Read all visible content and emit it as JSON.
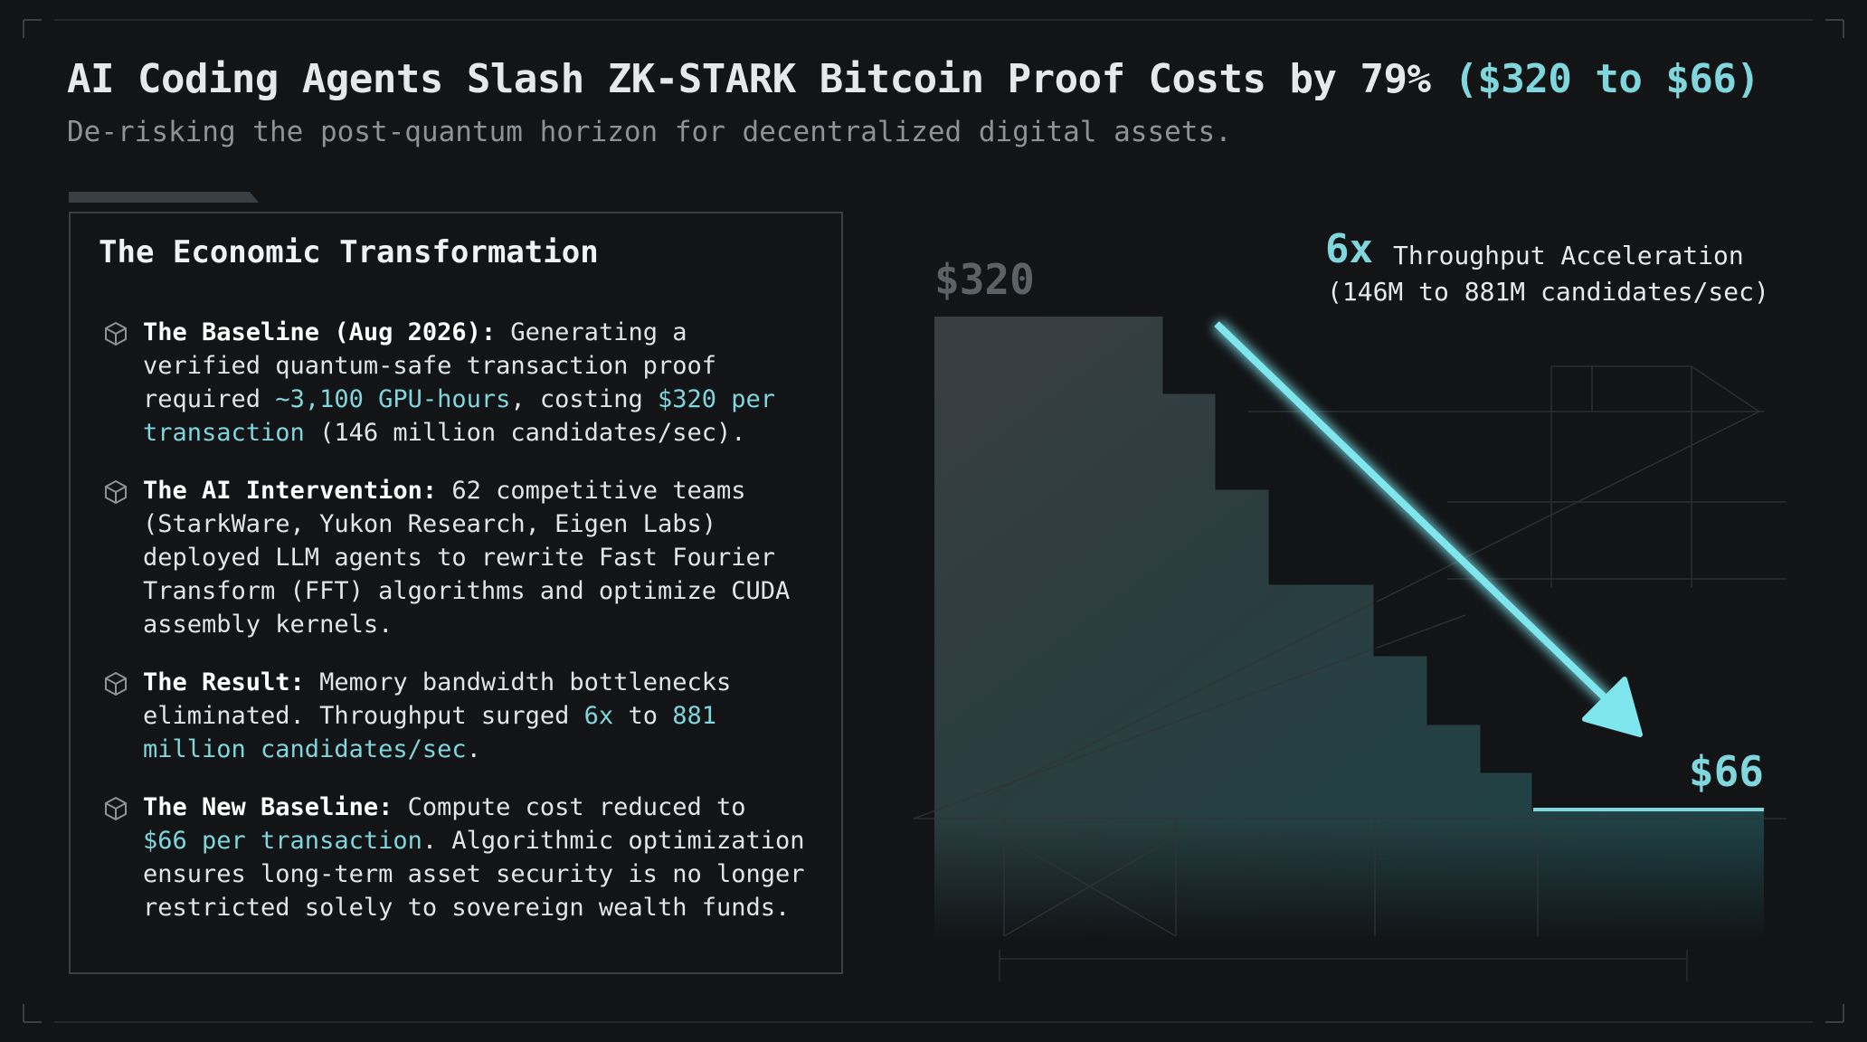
{
  "header": {
    "title": "AI Coding Agents Slash ZK-STARK Bitcoin Proof Costs by 79%",
    "title_highlight": "($320 to $66)",
    "subtitle": "De-risking the post-quantum horizon for decentralized digital assets."
  },
  "panel": {
    "title": "The Economic Transformation",
    "items": [
      {
        "label": "The Baseline (Aug 2026):",
        "segments": [
          {
            "text": "Generating a verified quantum-safe transaction proof required",
            "highlight": false
          },
          {
            "text": "~3,100 GPU-hours",
            "highlight": true
          },
          {
            "text": ", costing",
            "highlight": false
          },
          {
            "text": "$320 per transaction",
            "highlight": true
          },
          {
            "text": "(146 million candidates/sec).",
            "highlight": false
          }
        ]
      },
      {
        "label": "The AI Intervention:",
        "segments": [
          {
            "text": "62 competitive teams (StarkWare, Yukon Research, Eigen Labs) deployed LLM agents to rewrite Fast Fourier Transform (FFT) algorithms and optimize CUDA assembly kernels.",
            "highlight": false
          }
        ]
      },
      {
        "label": "The Result:",
        "segments": [
          {
            "text": "Memory bandwidth bottlenecks eliminated. Throughput surged",
            "highlight": false
          },
          {
            "text": "6x",
            "highlight": true
          },
          {
            "text": "to",
            "highlight": false
          },
          {
            "text": "881 million candidates/sec",
            "highlight": true
          },
          {
            "text": ".",
            "highlight": false
          }
        ]
      },
      {
        "label": "The New Baseline:",
        "segments": [
          {
            "text": "Compute cost reduced to",
            "highlight": false
          },
          {
            "text": "$66 per transaction",
            "highlight": true
          },
          {
            "text": ". Algorithmic optimization ensures long-term asset security is no longer restricted solely to sovereign wealth funds.",
            "highlight": false
          }
        ]
      }
    ]
  },
  "visual": {
    "start_label": "$320",
    "end_label": "$66",
    "multiplier": "6x",
    "callout": "Throughput Acceleration",
    "callout_detail": "(146M to 881M candidates/sec)"
  }
}
